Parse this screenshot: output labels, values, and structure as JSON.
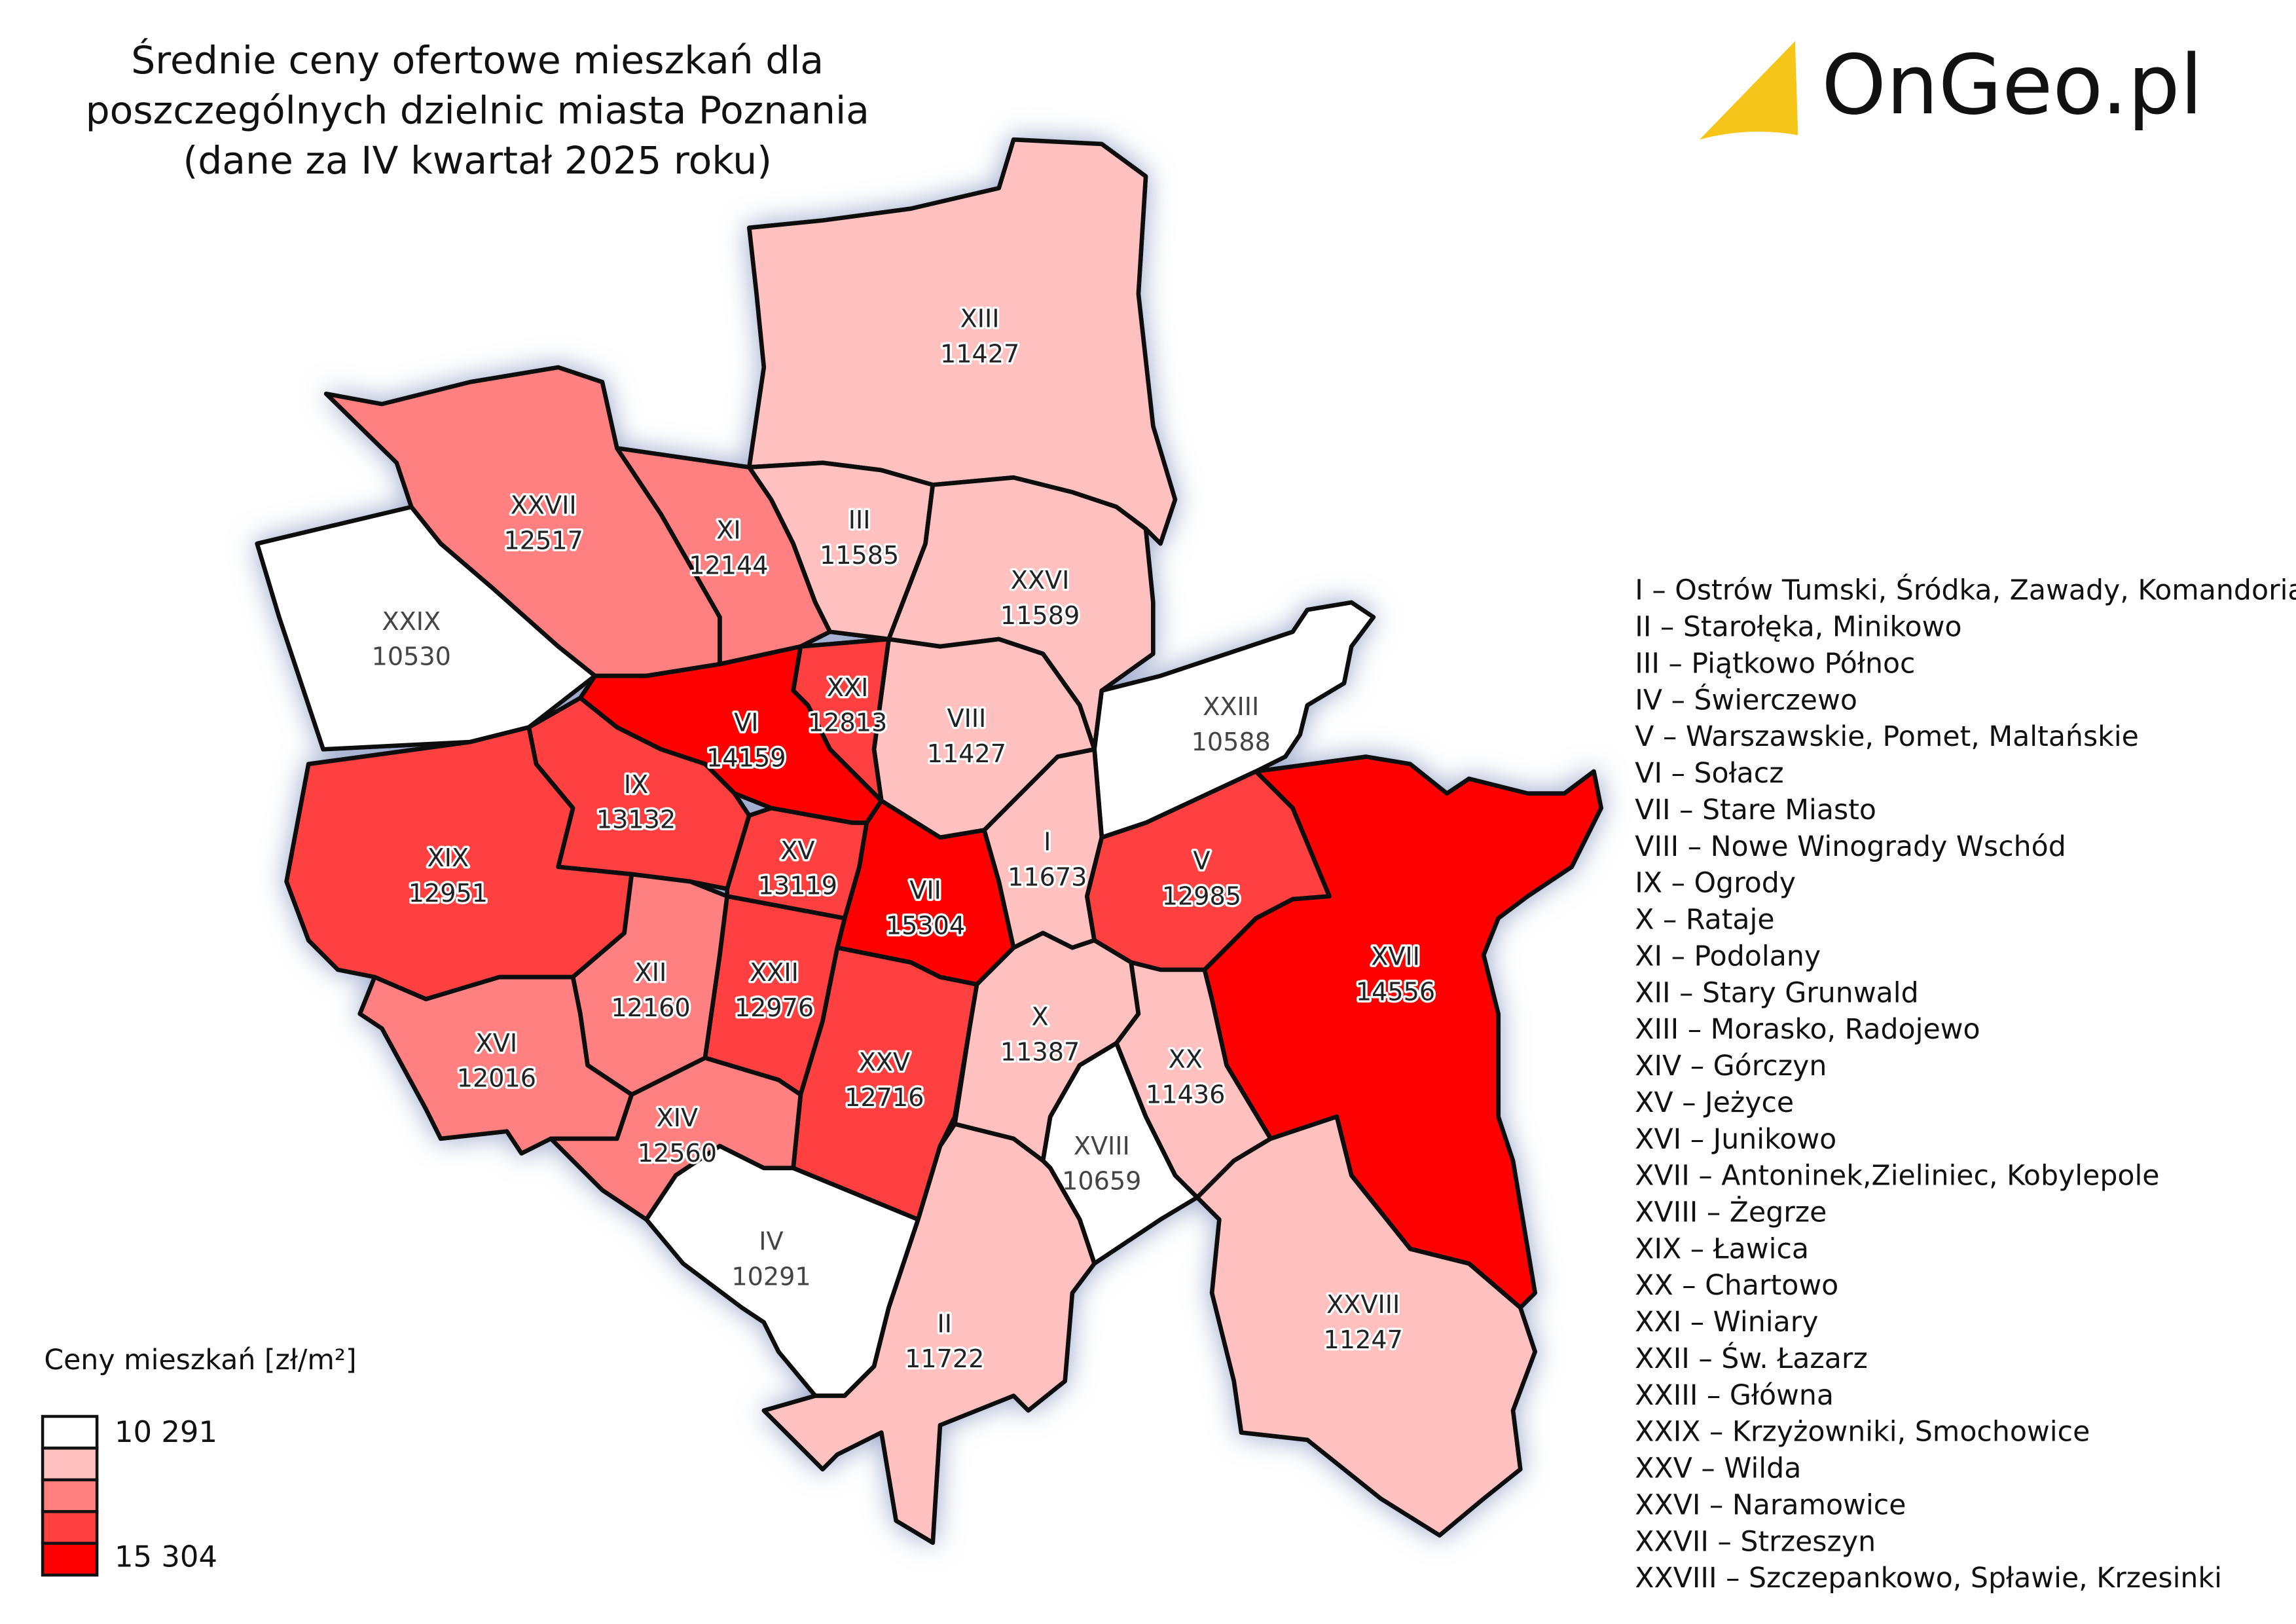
{
  "title_lines": [
    "Średnie ceny ofertowe mieszkań dla",
    "poszczególnych dzielnic miasta Poznania",
    "(dane za IV kwartał 2025 roku)"
  ],
  "logo": "OnGeo.pl",
  "legend": {
    "title": "Ceny mieszkań [zł/m²]",
    "min_label": "10 291",
    "max_label": "15 304",
    "colors": [
      "#ffffff",
      "#ffc0c0",
      "#ff8080",
      "#ff4040",
      "#ff0000"
    ]
  },
  "districts": [
    {
      "id": "XIII",
      "value": 11427,
      "color": "#ffc0c0"
    },
    {
      "id": "XXVII",
      "value": 12517,
      "color": "#ff8080"
    },
    {
      "id": "XXIX",
      "value": 10530,
      "color": "#ffffff"
    },
    {
      "id": "XI",
      "value": 12144,
      "color": "#ff8080"
    },
    {
      "id": "III",
      "value": 11585,
      "color": "#ffc0c0"
    },
    {
      "id": "XXVI",
      "value": 11589,
      "color": "#ffc0c0"
    },
    {
      "id": "XXIII",
      "value": 10588,
      "color": "#ffffff"
    },
    {
      "id": "VIII",
      "value": 11427,
      "color": "#ffc0c0"
    },
    {
      "id": "XXI",
      "value": 12813,
      "color": "#ff4040"
    },
    {
      "id": "VI",
      "value": 14159,
      "color": "#ff0000"
    },
    {
      "id": "IX",
      "value": 13132,
      "color": "#ff4040"
    },
    {
      "id": "XIX",
      "value": 12951,
      "color": "#ff4040"
    },
    {
      "id": "XV",
      "value": 13119,
      "color": "#ff4040"
    },
    {
      "id": "VII",
      "value": 15304,
      "color": "#ff0000"
    },
    {
      "id": "I",
      "value": 11673,
      "color": "#ffc0c0"
    },
    {
      "id": "V",
      "value": 12985,
      "color": "#ff4040"
    },
    {
      "id": "XVII",
      "value": 14556,
      "color": "#ff0000"
    },
    {
      "id": "XII",
      "value": 12160,
      "color": "#ff8080"
    },
    {
      "id": "XXII",
      "value": 12976,
      "color": "#ff4040"
    },
    {
      "id": "XVI",
      "value": 12016,
      "color": "#ff8080"
    },
    {
      "id": "XXV",
      "value": 12716,
      "color": "#ff4040"
    },
    {
      "id": "XIV",
      "value": 12560,
      "color": "#ff8080"
    },
    {
      "id": "X",
      "value": 11387,
      "color": "#ffc0c0"
    },
    {
      "id": "XX",
      "value": 11436,
      "color": "#ffc0c0"
    },
    {
      "id": "XVIII",
      "value": 10659,
      "color": "#ffffff"
    },
    {
      "id": "IV",
      "value": 10291,
      "color": "#ffffff"
    },
    {
      "id": "II",
      "value": 11722,
      "color": "#ffc0c0"
    },
    {
      "id": "XXVIII",
      "value": 11247,
      "color": "#ffc0c0"
    }
  ],
  "district_names": [
    "I – Ostrów Tumski, Śródka, Zawady, Komandoria",
    "II – Starołęka, Minikowo",
    "III – Piątkowo Północ",
    "IV – Świerczewo",
    "V – Warszawskie, Pomet, Maltańskie",
    "VI – Sołacz",
    "VII – Stare Miasto",
    "VIII – Nowe Winogrady Wschód",
    "IX – Ogrody",
    "X – Rataje",
    "XI – Podolany",
    "XII – Stary Grunwald",
    "XIII – Morasko, Radojewo",
    "XIV – Górczyn",
    "XV – Jeżyce",
    "XVI – Junikowo",
    "XVII – Antoninek,Zieliniec, Kobylepole",
    "XVIII – Żegrze",
    "XIX – Ławica",
    "XX – Chartowo",
    "XXI – Winiary",
    "XXII – Św. Łazarz",
    "XXIII – Główna",
    "XXIX – Krzyżowniki, Smochowice",
    "XXV – Wilda",
    "XXVI – Naramowice",
    "XXVII – Strzeszyn",
    "XXVIII – Szczepankowo, Spławie, Krzesinki"
  ]
}
